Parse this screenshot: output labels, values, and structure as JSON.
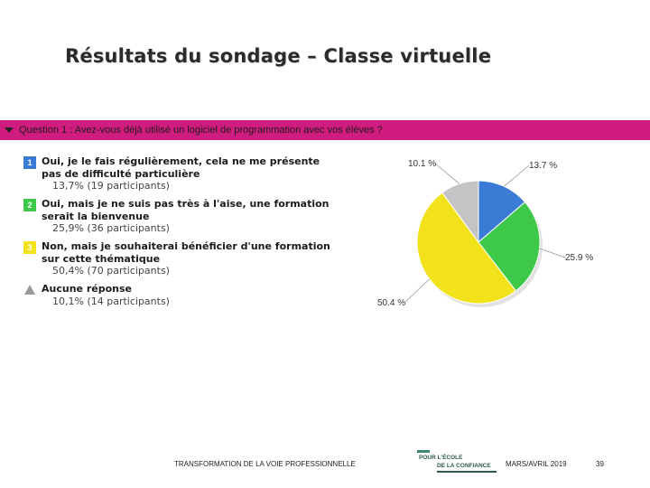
{
  "slide": {
    "title": "Résultats du sondage – Classe virtuelle"
  },
  "question": {
    "text": "Question 1 : Avez-vous déjà utilisé un logiciel de programmation avec vos élèves ?",
    "bar_color": "#d01b7f"
  },
  "options": [
    {
      "number": "1",
      "badge_color": "#3a7bd5",
      "label": "Oui, je le fais régulièrement, cela ne me présente pas de difficulté particulière",
      "result": "13,7% (19 participants)"
    },
    {
      "number": "2",
      "badge_color": "#3ec84a",
      "label": "Oui, mais je ne suis pas très à l'aise, une formation serait la bienvenue",
      "result": "25,9% (36 participants)"
    },
    {
      "number": "3",
      "badge_color": "#f2e21c",
      "label": "Non, mais je souhaiterai bénéficier d'une formation sur cette thématique",
      "result": "50,4% (70 participants)"
    },
    {
      "number": "",
      "badge_color": "#9a9a9a",
      "icon": "triangle-icon",
      "label": "Aucune réponse",
      "result": "10,1% (14 participants)"
    }
  ],
  "chart_data": {
    "type": "pie",
    "categories": [
      "Option 1",
      "Option 2",
      "Option 3",
      "Aucune réponse"
    ],
    "values": [
      13.7,
      25.9,
      50.4,
      10.1
    ],
    "value_labels": [
      "13.7 %",
      "25.9 %",
      "50.4 %",
      "10.1 %"
    ],
    "colors": [
      "#3a7bd5",
      "#3ec84a",
      "#f2e21c",
      "#c4c4c4"
    ],
    "start": "12 o'clock, clockwise"
  },
  "footer": {
    "program": "TRANSFORMATION DE LA VOIE PROFESSIONNELLE",
    "logo_line1": "POUR L'ÉCOLE",
    "logo_line2": "DE LA CONFIANCE",
    "date": "MARS/AVRIL 2019",
    "page": "39"
  }
}
